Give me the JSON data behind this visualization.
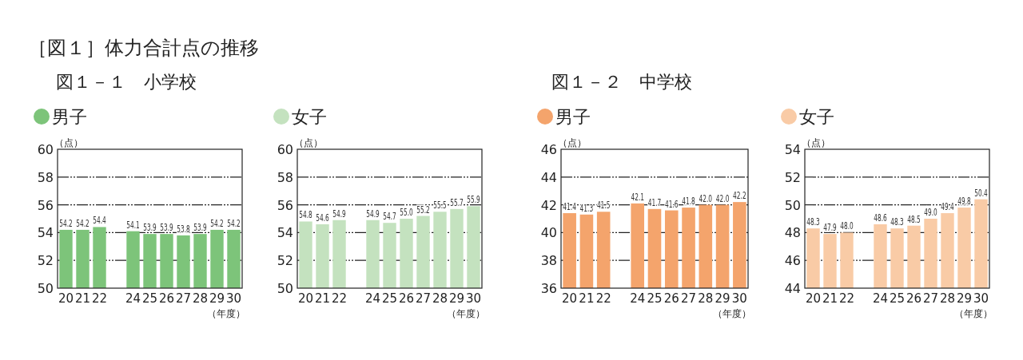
{
  "chart_data": [
    {
      "type": "bar",
      "title": "［図１］体力合計点の推移",
      "subtitle": "図１－１　小学校",
      "ylabel": "（点）",
      "xlabel": "（年度）",
      "categories": [
        "20",
        "21",
        "22",
        null,
        "24",
        "25",
        "26",
        "27",
        "28",
        "29",
        "30"
      ],
      "series": [
        {
          "name": "男子",
          "color": "#7dc47a",
          "values": [
            54.2,
            54.2,
            54.4,
            null,
            54.1,
            53.9,
            53.9,
            53.8,
            53.9,
            54.2,
            54.2
          ],
          "value_labels": [
            "54.2",
            "54.2",
            "54.4",
            null,
            "54.1",
            "53.9",
            "53.9",
            "53.8",
            "53.9",
            "54.2",
            "54.2"
          ]
        }
      ],
      "ylim": [
        50,
        60
      ],
      "yticks": [
        50,
        52,
        54,
        56,
        58,
        60
      ],
      "grid": "y",
      "legend": "top left"
    },
    {
      "type": "bar",
      "ylabel": "（点）",
      "xlabel": "（年度）",
      "categories": [
        "20",
        "21",
        "22",
        null,
        "24",
        "25",
        "26",
        "27",
        "28",
        "29",
        "30"
      ],
      "series": [
        {
          "name": "女子",
          "color": "#c4e2bf",
          "values": [
            54.8,
            54.6,
            54.9,
            null,
            54.9,
            54.7,
            55.0,
            55.2,
            55.5,
            55.7,
            55.9
          ],
          "value_labels": [
            "54.8",
            "54.6",
            "54.9",
            null,
            "54.9",
            "54.7",
            "55.0",
            "55.2",
            "55.5",
            "55.7",
            "55.9"
          ]
        }
      ],
      "ylim": [
        50,
        60
      ],
      "yticks": [
        50,
        52,
        54,
        56,
        58,
        60
      ],
      "grid": "y",
      "legend": "top left"
    },
    {
      "type": "bar",
      "subtitle": "図１－２　中学校",
      "ylabel": "（点）",
      "xlabel": "（年度）",
      "categories": [
        "20",
        "21",
        "22",
        null,
        "24",
        "25",
        "26",
        "27",
        "28",
        "29",
        "30"
      ],
      "series": [
        {
          "name": "男子",
          "color": "#f4a46c",
          "values": [
            41.4,
            41.3,
            41.5,
            null,
            42.1,
            41.7,
            41.6,
            41.8,
            42.0,
            42.0,
            42.2
          ],
          "value_labels": [
            "41.4",
            "41.3",
            "41.5",
            null,
            "42.1",
            "41.7",
            "41.6",
            "41.8",
            "42.0",
            "42.0",
            "42.2"
          ]
        }
      ],
      "ylim": [
        36,
        46
      ],
      "yticks": [
        36,
        38,
        40,
        42,
        44,
        46
      ],
      "grid": "y",
      "legend": "top left"
    },
    {
      "type": "bar",
      "ylabel": "（点）",
      "xlabel": "（年度）",
      "categories": [
        "20",
        "21",
        "22",
        null,
        "24",
        "25",
        "26",
        "27",
        "28",
        "29",
        "30"
      ],
      "series": [
        {
          "name": "女子",
          "color": "#f9cba6",
          "values": [
            48.3,
            47.9,
            48.0,
            null,
            48.6,
            48.3,
            48.5,
            49.0,
            49.4,
            49.8,
            50.4
          ],
          "value_labels": [
            "48.3",
            "47.9",
            "48.0",
            null,
            "48.6",
            "48.3",
            "48.5",
            "49.0",
            "49.4",
            "49.8",
            "50.4"
          ]
        }
      ],
      "ylim": [
        44,
        54
      ],
      "yticks": [
        44,
        46,
        48,
        50,
        52,
        54
      ],
      "grid": "y",
      "legend": "top left"
    }
  ]
}
